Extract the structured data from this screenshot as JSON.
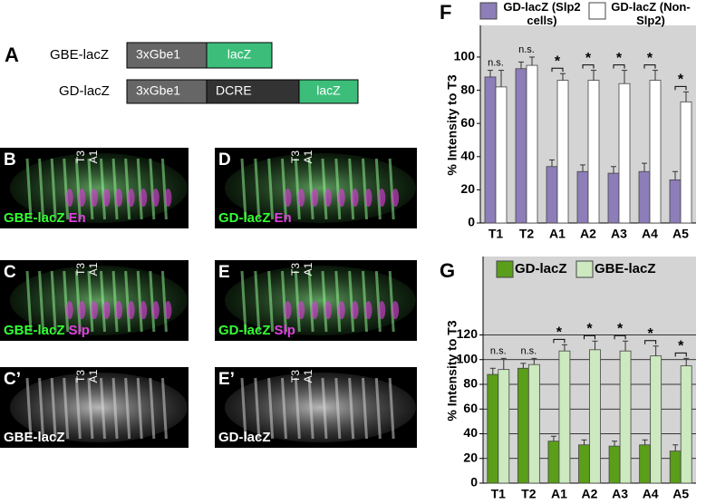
{
  "figure": {
    "panel_a": {
      "label": "A",
      "constructs": [
        {
          "name": "GBE-lacZ",
          "parts": [
            "3xGbe1",
            "lacZ"
          ]
        },
        {
          "name": "GD-lacZ",
          "parts": [
            "3xGbe1",
            "DCRE",
            "lacZ"
          ]
        }
      ]
    },
    "images": [
      {
        "label": "B",
        "markers": [
          "T3",
          "A1"
        ],
        "stains": [
          "GBE-lacZ",
          "En"
        ]
      },
      {
        "label": "D",
        "markers": [
          "T3",
          "A1"
        ],
        "stains": [
          "GD-lacZ",
          "En"
        ]
      },
      {
        "label": "C",
        "markers": [
          "T3",
          "A1"
        ],
        "stains": [
          "GBE-lacZ",
          "Slp"
        ]
      },
      {
        "label": "E",
        "markers": [
          "T3",
          "A1"
        ],
        "stains": [
          "GD-lacZ",
          "Slp"
        ]
      },
      {
        "label": "C’",
        "markers": [
          "T3",
          "A1"
        ],
        "stains": [
          "GBE-lacZ"
        ]
      },
      {
        "label": "E’",
        "markers": [
          "T3",
          "A1"
        ],
        "stains": [
          "GD-lacZ"
        ]
      }
    ]
  },
  "chart_data": [
    {
      "type": "bar",
      "panel_label": "F",
      "ylabel": "% Intensity to T3",
      "categories": [
        "T1",
        "T2",
        "A1",
        "A2",
        "A3",
        "A4",
        "A5"
      ],
      "series": [
        {
          "name": "GD-lacZ (Slp2 cells)",
          "color": "#8d7db8",
          "values": [
            88,
            93,
            34,
            31,
            30,
            31,
            26
          ],
          "errors": [
            4,
            4,
            4,
            4,
            4,
            5,
            5
          ]
        },
        {
          "name": "GD-lacZ (Non-Slp2)",
          "color": "#ffffff",
          "values": [
            82,
            95,
            86,
            86,
            84,
            86,
            73
          ],
          "errors": [
            10,
            5,
            4,
            6,
            8,
            6,
            6
          ]
        }
      ],
      "annotations": [
        "n.s.",
        "n.s.",
        "*",
        "*",
        "*",
        "*",
        "*"
      ],
      "ylim": [
        0,
        118
      ],
      "yticks": [
        0,
        20,
        40,
        60,
        80,
        100
      ],
      "grid": false
    },
    {
      "type": "bar",
      "panel_label": "G",
      "ylabel": "% Intensity to T3",
      "categories": [
        "T1",
        "T2",
        "A1",
        "A2",
        "A3",
        "A4",
        "A5"
      ],
      "series": [
        {
          "name": "GD-lacZ",
          "color": "#5a9e1a",
          "values": [
            88,
            93,
            34,
            31,
            30,
            31,
            26
          ],
          "errors": [
            5,
            4,
            4,
            4,
            4,
            4,
            5
          ]
        },
        {
          "name": "GBE-lacZ",
          "color": "#cde9bf",
          "values": [
            92,
            96,
            107,
            108,
            107,
            103,
            95
          ],
          "errors": [
            9,
            5,
            5,
            7,
            8,
            8,
            6
          ]
        }
      ],
      "annotations": [
        "n.s.",
        "n.s.",
        "*",
        "*",
        "*",
        "*",
        "*"
      ],
      "ylim": [
        0,
        182
      ],
      "yticks": [
        0,
        20,
        40,
        60,
        80,
        100,
        120
      ],
      "grid": true
    }
  ]
}
